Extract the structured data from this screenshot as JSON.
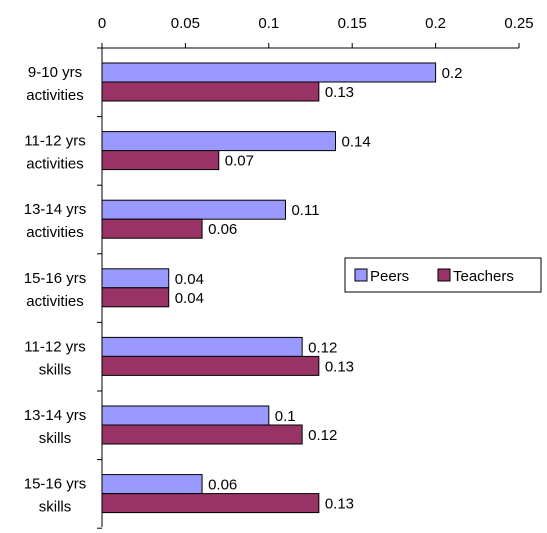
{
  "chart_data": {
    "type": "bar",
    "orientation": "horizontal",
    "categories": [
      [
        "9-10 yrs",
        "activities"
      ],
      [
        "11-12 yrs",
        "activities"
      ],
      [
        "13-14 yrs",
        "activities"
      ],
      [
        "15-16 yrs",
        "activities"
      ],
      [
        "11-12 yrs",
        "skills"
      ],
      [
        "13-14 yrs",
        "skills"
      ],
      [
        "15-16 yrs",
        "skills"
      ]
    ],
    "series": [
      {
        "name": "Peers",
        "color": "#9999ff",
        "values": [
          0.2,
          0.14,
          0.11,
          0.04,
          0.12,
          0.1,
          0.06
        ],
        "labels": [
          "0.2",
          "0.14",
          "0.11",
          "0.04",
          "0.12",
          "0.1",
          "0.06"
        ]
      },
      {
        "name": "Teachers",
        "color": "#993366",
        "values": [
          0.13,
          0.07,
          0.06,
          0.04,
          0.13,
          0.12,
          0.13
        ],
        "labels": [
          "0.13",
          "0.07",
          "0.06",
          "0.04",
          "0.13",
          "0.12",
          "0.13"
        ]
      }
    ],
    "xlim": [
      0,
      0.25
    ],
    "ticks": [
      0,
      0.05,
      0.1,
      0.15,
      0.2,
      0.25
    ],
    "tick_labels": [
      "0",
      "0.05",
      "0.1",
      "0.15",
      "0.2",
      "0.25"
    ],
    "axis_position": "top",
    "grid": false,
    "legend_position": "right"
  }
}
